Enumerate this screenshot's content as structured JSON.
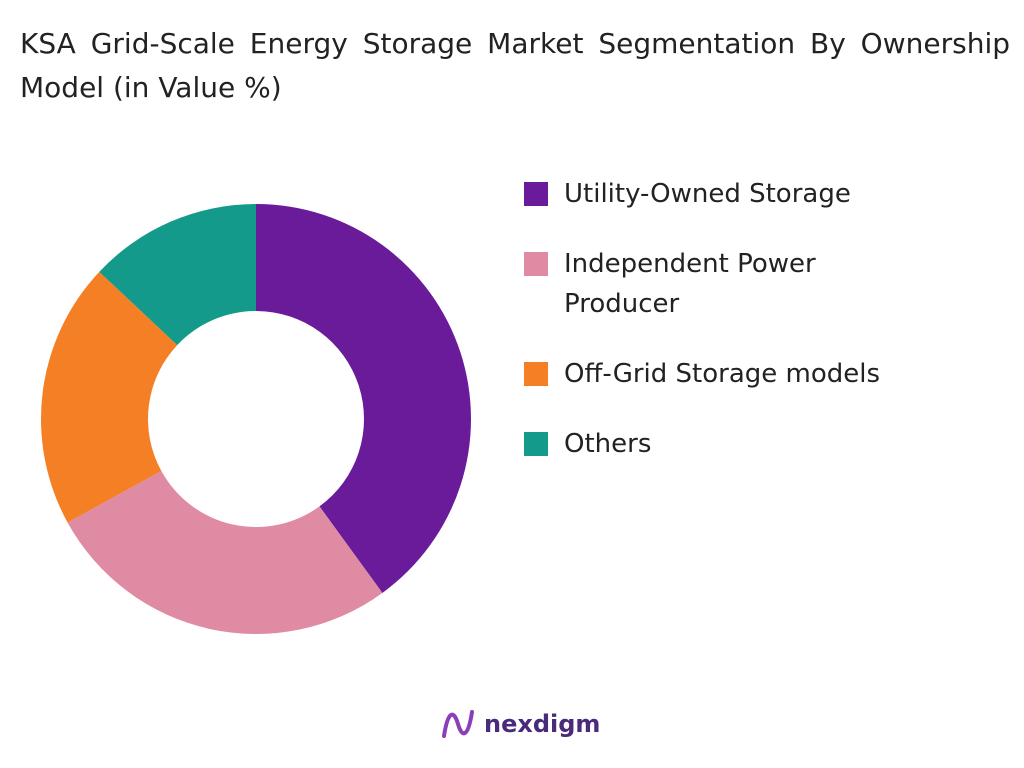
{
  "chart_data": {
    "type": "donut",
    "title": "KSA Grid-Scale Energy Storage Market Segmentation By Ownership Model (in Value %)",
    "categories": [
      "Utility-Owned Storage",
      "Independent Power Producer",
      "Off-Grid Storage models",
      "Others"
    ],
    "values": [
      40,
      27,
      20,
      13
    ],
    "colors": [
      "#6a1b9a",
      "#de8ba3",
      "#f47f24",
      "#139a8a"
    ]
  },
  "logo_text": "nexdigm"
}
